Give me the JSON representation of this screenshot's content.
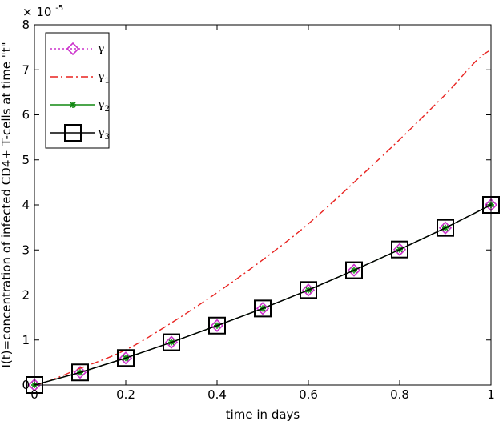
{
  "chart_data": {
    "type": "line",
    "xlabel": "time in days",
    "ylabel": "I(t)=concentration of infected CD4+ T-cells at time \"t\"",
    "y_multiplier_label": "× 10",
    "y_multiplier_exponent": "-5",
    "xlim": [
      0,
      1
    ],
    "ylim": [
      0,
      8
    ],
    "x_ticks": [
      0,
      0.2,
      0.4,
      0.6,
      0.8,
      1
    ],
    "x_tick_labels": [
      "0",
      "0.2",
      "0.4",
      "0.6",
      "0.8",
      "1"
    ],
    "y_ticks": [
      0,
      1,
      2,
      3,
      4,
      5,
      6,
      7,
      8
    ],
    "y_tick_labels": [
      "0",
      "1",
      "2",
      "3",
      "4",
      "5",
      "6",
      "7",
      "8"
    ],
    "grid": false,
    "legend_position": "top-left",
    "x": [
      0,
      0.1,
      0.2,
      0.3,
      0.4,
      0.5,
      0.6,
      0.7,
      0.8,
      0.9,
      1.0
    ],
    "series": [
      {
        "name": "γ",
        "name_base": "γ",
        "name_sub": "",
        "color": "#cc33cc",
        "style": "dotted",
        "marker": "diamond",
        "values": [
          0,
          0.28,
          0.6,
          0.95,
          1.32,
          1.7,
          2.11,
          2.55,
          3.01,
          3.49,
          4.0
        ]
      },
      {
        "name": "γ1",
        "name_base": "γ",
        "name_sub": "1",
        "color": "#e8221f",
        "style": "dashdot",
        "marker": "none",
        "values": [
          0,
          0.37,
          0.78,
          1.38,
          2.05,
          2.78,
          3.58,
          4.5,
          5.45,
          6.45,
          7.45
        ]
      },
      {
        "name": "γ2",
        "name_base": "γ",
        "name_sub": "2",
        "color": "#118811",
        "style": "solid",
        "marker": "star",
        "values": [
          0,
          0.28,
          0.6,
          0.95,
          1.32,
          1.7,
          2.11,
          2.55,
          3.01,
          3.49,
          4.0
        ]
      },
      {
        "name": "γ3",
        "name_base": "γ",
        "name_sub": "3",
        "color": "#000000",
        "style": "solid",
        "marker": "square",
        "values": [
          0,
          0.28,
          0.6,
          0.95,
          1.32,
          1.7,
          2.11,
          2.55,
          3.01,
          3.49,
          4.0
        ]
      }
    ]
  }
}
